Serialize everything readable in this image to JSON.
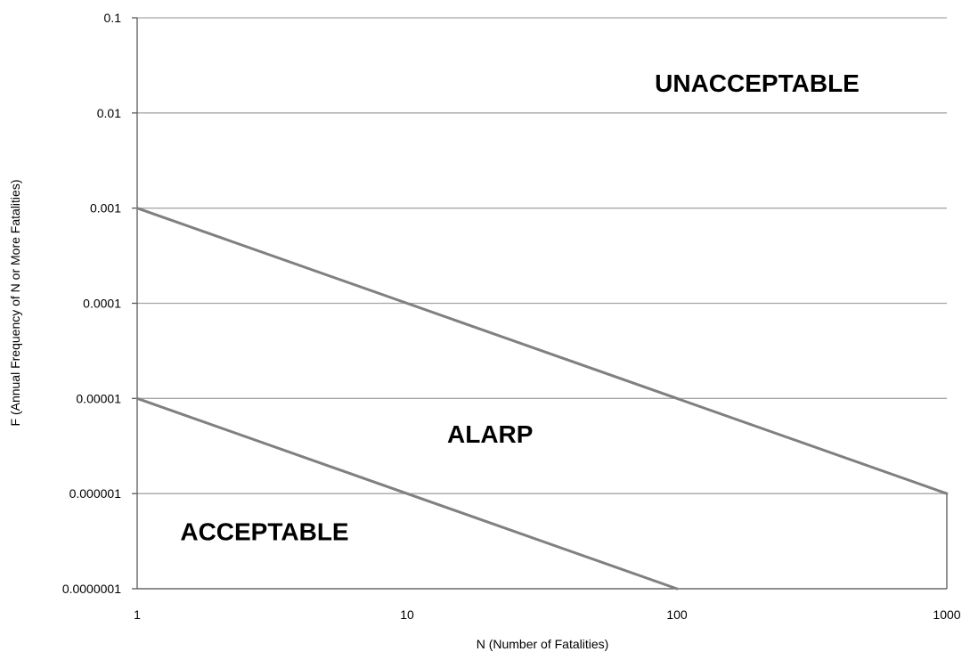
{
  "chart_data": {
    "type": "line",
    "title": "",
    "xlabel": "N (Number of Fatalities)",
    "ylabel": "F (Annual Frequency of N or More Fatalities)",
    "x_scale": "log",
    "y_scale": "log",
    "xlim": [
      1,
      1000
    ],
    "ylim": [
      1e-07,
      0.1
    ],
    "x_ticks": [
      1,
      10,
      100,
      1000
    ],
    "x_tick_labels": [
      "1",
      "10",
      "100",
      "1000"
    ],
    "y_ticks": [
      0.1,
      0.01,
      0.001,
      0.0001,
      1e-05,
      1e-06,
      1e-07
    ],
    "y_tick_labels": [
      "0.1",
      "0.01",
      "0.001",
      "0.0001",
      "0.00001",
      "0.000001",
      "0.0000001"
    ],
    "grid": "horizontal",
    "line_color": "#808080",
    "grid_color": "#a6a6a6",
    "series": [
      {
        "x": [
          1,
          1000
        ],
        "y": [
          0.001,
          1e-06
        ]
      },
      {
        "x": [
          1,
          100
        ],
        "y": [
          1e-05,
          1e-07
        ]
      }
    ],
    "annotations": [
      {
        "text": "UNACCEPTABLE",
        "x": 100,
        "y": 0.01
      },
      {
        "text": "ALARP",
        "x": 10,
        "y": 4e-06
      },
      {
        "text": "ACCEPTABLE",
        "x": 1.5,
        "y": 4e-07
      }
    ]
  }
}
